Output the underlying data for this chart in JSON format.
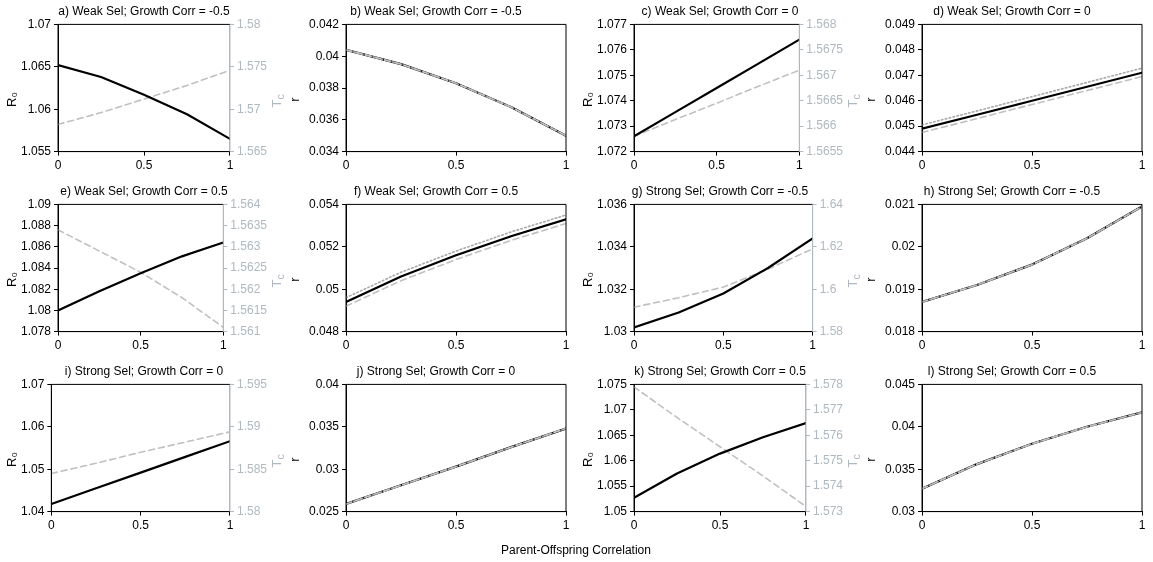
{
  "chart_data": [
    {
      "type": "line",
      "title": "a) Weak Sel; Growth Corr = -0.5",
      "ylabel": "R₀",
      "y2label": "T$_{c}$",
      "x": [
        0,
        0.25,
        0.5,
        0.75,
        1
      ],
      "xlim": [
        0,
        1
      ],
      "xticks": [
        0,
        0.5,
        1
      ],
      "ylim": [
        1.055,
        1.07
      ],
      "yticks": [
        1.055,
        1.06,
        1.065,
        1.07
      ],
      "y2lim": [
        1.565,
        1.58
      ],
      "y2ticks": [
        1.565,
        1.57,
        1.575,
        1.58
      ],
      "series": [
        {
          "color": "#000000",
          "line_style": "solid",
          "values": [
            1.0652,
            1.0638,
            1.0617,
            1.0594,
            1.0565
          ]
        },
        {
          "color": "#c0c0c0",
          "line_style": "dashed",
          "axis": "y2",
          "values": [
            1.5682,
            1.5696,
            1.5712,
            1.5728,
            1.5746
          ]
        }
      ]
    },
    {
      "type": "line",
      "title": "b) Weak Sel; Growth Corr = -0.5",
      "ylabel": "r",
      "x": [
        0,
        0.25,
        0.5,
        0.75,
        1
      ],
      "xlim": [
        0,
        1
      ],
      "xticks": [
        0,
        0.5,
        1
      ],
      "ylim": [
        0.034,
        0.042
      ],
      "yticks": [
        0.034,
        0.036,
        0.038,
        0.04,
        0.042
      ],
      "series": [
        {
          "color": "#c0c0c0",
          "line_style": "dashed",
          "values": [
            0.0404,
            0.0395,
            0.0383,
            0.0368,
            0.035
          ]
        },
        {
          "color": "#a8a8a8",
          "line_style": "dotted",
          "values": [
            0.0404,
            0.0395,
            0.0383,
            0.0368,
            0.035
          ]
        },
        {
          "color": "#000000",
          "line_style": "solid",
          "values": [
            0.0404,
            0.0395,
            0.0383,
            0.0368,
            0.035
          ]
        }
      ]
    },
    {
      "type": "line",
      "title": "c) Weak Sel; Growth Corr = 0",
      "ylabel": "R₀",
      "y2label": "T$_{c}$",
      "x": [
        0,
        0.25,
        0.5,
        0.75,
        1
      ],
      "xlim": [
        0,
        1
      ],
      "xticks": [
        0,
        0.5,
        1
      ],
      "ylim": [
        1.072,
        1.077
      ],
      "yticks": [
        1.072,
        1.073,
        1.074,
        1.075,
        1.076,
        1.077
      ],
      "y2lim": [
        1.5655,
        1.568
      ],
      "y2ticks": [
        1.5655,
        1.566,
        1.5665,
        1.567,
        1.5675,
        1.568
      ],
      "series": [
        {
          "color": "#000000",
          "line_style": "solid",
          "values": [
            1.0726,
            1.07355,
            1.0745,
            1.07545,
            1.0764
          ]
        },
        {
          "color": "#c0c0c0",
          "line_style": "dashed",
          "axis": "y2",
          "values": [
            1.5658,
            1.56613,
            1.56645,
            1.56678,
            1.5671
          ]
        }
      ]
    },
    {
      "type": "line",
      "title": "d) Weak Sel; Growth Corr = 0",
      "ylabel": "r",
      "x": [
        0,
        0.25,
        0.5,
        0.75,
        1
      ],
      "xlim": [
        0,
        1
      ],
      "xticks": [
        0,
        0.5,
        1
      ],
      "ylim": [
        0.044,
        0.049
      ],
      "yticks": [
        0.044,
        0.045,
        0.046,
        0.047,
        0.048,
        0.049
      ],
      "series": [
        {
          "color": "#c0c0c0",
          "line_style": "dashed",
          "values": [
            0.04475,
            0.0453,
            0.04585,
            0.0464,
            0.04695
          ]
        },
        {
          "color": "#a8a8a8",
          "line_style": "dotted",
          "values": [
            0.04505,
            0.0456,
            0.04616,
            0.04672,
            0.04728
          ]
        },
        {
          "color": "#000000",
          "line_style": "solid",
          "values": [
            0.0449,
            0.04545,
            0.046,
            0.04655,
            0.0471
          ]
        }
      ]
    },
    {
      "type": "line",
      "title": "e) Weak Sel; Growth Corr = 0.5",
      "ylabel": "R₀",
      "y2label": "T$_{c}$",
      "x": [
        0,
        0.25,
        0.5,
        0.75,
        1
      ],
      "xlim": [
        0,
        1
      ],
      "xticks": [
        0,
        0.5,
        1
      ],
      "ylim": [
        1.078,
        1.09
      ],
      "yticks": [
        1.078,
        1.08,
        1.082,
        1.084,
        1.086,
        1.088,
        1.09
      ],
      "y2lim": [
        1.561,
        1.564
      ],
      "y2ticks": [
        1.561,
        1.5615,
        1.562,
        1.5625,
        1.563,
        1.5635,
        1.564
      ],
      "series": [
        {
          "color": "#000000",
          "line_style": "solid",
          "values": [
            1.08,
            1.0818,
            1.0835,
            1.0851,
            1.0864
          ]
        },
        {
          "color": "#c0c0c0",
          "line_style": "dashed",
          "axis": "y2",
          "values": [
            1.5634,
            1.5629,
            1.5624,
            1.5618,
            1.5611
          ]
        }
      ]
    },
    {
      "type": "line",
      "title": "f) Weak Sel; Growth Corr = 0.5",
      "ylabel": "r",
      "x": [
        0,
        0.25,
        0.5,
        0.75,
        1
      ],
      "xlim": [
        0,
        1
      ],
      "xticks": [
        0,
        0.5,
        1
      ],
      "ylim": [
        0.048,
        0.054
      ],
      "yticks": [
        0.048,
        0.05,
        0.052,
        0.054
      ],
      "series": [
        {
          "color": "#c0c0c0",
          "line_style": "dashed",
          "values": [
            0.0492,
            0.0504,
            0.0514,
            0.0523,
            0.0531
          ]
        },
        {
          "color": "#a8a8a8",
          "line_style": "dotted",
          "values": [
            0.0496,
            0.0508,
            0.0518,
            0.0527,
            0.0535
          ]
        },
        {
          "color": "#000000",
          "line_style": "solid",
          "values": [
            0.0494,
            0.0506,
            0.0516,
            0.0525,
            0.0533
          ]
        }
      ]
    },
    {
      "type": "line",
      "title": "g) Strong Sel; Growth Corr = -0.5",
      "ylabel": "R₀",
      "y2label": "T$_{c}$",
      "x": [
        0,
        0.25,
        0.5,
        0.75,
        1
      ],
      "xlim": [
        0,
        1
      ],
      "xticks": [
        0,
        0.5,
        1
      ],
      "ylim": [
        1.03,
        1.036
      ],
      "yticks": [
        1.03,
        1.032,
        1.034,
        1.036
      ],
      "y2lim": [
        1.58,
        1.64
      ],
      "y2ticks": [
        1.58,
        1.6,
        1.62,
        1.64
      ],
      "series": [
        {
          "color": "#000000",
          "line_style": "solid",
          "values": [
            1.0302,
            1.0309,
            1.0318,
            1.033,
            1.0344
          ]
        },
        {
          "color": "#c0c0c0",
          "line_style": "dashed",
          "axis": "y2",
          "values": [
            1.5915,
            1.596,
            1.601,
            1.6095,
            1.619
          ]
        }
      ]
    },
    {
      "type": "line",
      "title": "h) Strong Sel; Growth Corr = -0.5",
      "ylabel": "r",
      "x": [
        0,
        0.25,
        0.5,
        0.75,
        1
      ],
      "xlim": [
        0,
        1
      ],
      "xticks": [
        0,
        0.5,
        1
      ],
      "ylim": [
        0.018,
        0.021
      ],
      "yticks": [
        0.018,
        0.019,
        0.02,
        0.021
      ],
      "series": [
        {
          "color": "#c0c0c0",
          "line_style": "dashed",
          "values": [
            0.0187,
            0.0191,
            0.01958,
            0.0202,
            0.02095
          ]
        },
        {
          "color": "#a8a8a8",
          "line_style": "dotted",
          "values": [
            0.0187,
            0.0191,
            0.01958,
            0.0202,
            0.02095
          ]
        },
        {
          "color": "#000000",
          "line_style": "solid",
          "values": [
            0.0187,
            0.0191,
            0.01958,
            0.0202,
            0.02095
          ]
        }
      ]
    },
    {
      "type": "line",
      "title": "i) Strong Sel; Growth Corr = 0",
      "ylabel": "R₀",
      "y2label": "T$_{c}$",
      "x": [
        0,
        0.25,
        0.5,
        0.75,
        1
      ],
      "xlim": [
        0,
        1
      ],
      "xticks": [
        0,
        0.5,
        1
      ],
      "ylim": [
        1.04,
        1.07
      ],
      "yticks": [
        1.04,
        1.05,
        1.06,
        1.07
      ],
      "y2lim": [
        1.58,
        1.595
      ],
      "y2ticks": [
        1.58,
        1.585,
        1.59,
        1.595
      ],
      "series": [
        {
          "color": "#000000",
          "line_style": "solid",
          "values": [
            1.0418,
            1.0455,
            1.0492,
            1.0529,
            1.0566
          ]
        },
        {
          "color": "#c0c0c0",
          "line_style": "dashed",
          "axis": "y2",
          "values": [
            1.5845,
            1.5857,
            1.587,
            1.5882,
            1.5894
          ]
        }
      ]
    },
    {
      "type": "line",
      "title": "j) Strong Sel; Growth Corr = 0",
      "ylabel": "r",
      "x": [
        0,
        0.25,
        0.5,
        0.75,
        1
      ],
      "xlim": [
        0,
        1
      ],
      "xticks": [
        0,
        0.5,
        1
      ],
      "ylim": [
        0.025,
        0.04
      ],
      "yticks": [
        0.025,
        0.03,
        0.035,
        0.04
      ],
      "series": [
        {
          "color": "#c0c0c0",
          "line_style": "dashed",
          "values": [
            0.0259,
            0.0281,
            0.0303,
            0.0326,
            0.0348
          ]
        },
        {
          "color": "#a8a8a8",
          "line_style": "dotted",
          "values": [
            0.0259,
            0.0281,
            0.0303,
            0.0326,
            0.0348
          ]
        },
        {
          "color": "#000000",
          "line_style": "solid",
          "values": [
            0.0259,
            0.0281,
            0.0303,
            0.0326,
            0.0348
          ]
        }
      ]
    },
    {
      "type": "line",
      "title": "k) Strong Sel; Growth Corr = 0.5",
      "ylabel": "R₀",
      "y2label": "T$_{c}$",
      "x": [
        0,
        0.25,
        0.5,
        0.75,
        1
      ],
      "xlim": [
        0,
        1
      ],
      "xticks": [
        0,
        0.5,
        1
      ],
      "ylim": [
        1.05,
        1.075
      ],
      "yticks": [
        1.05,
        1.055,
        1.06,
        1.065,
        1.07,
        1.075
      ],
      "y2lim": [
        1.573,
        1.578
      ],
      "y2ticks": [
        1.573,
        1.574,
        1.575,
        1.576,
        1.577,
        1.578
      ],
      "series": [
        {
          "color": "#000000",
          "line_style": "solid",
          "values": [
            1.0527,
            1.0575,
            1.0614,
            1.0646,
            1.0674
          ]
        },
        {
          "color": "#c0c0c0",
          "line_style": "dashed",
          "axis": "y2",
          "values": [
            1.5779,
            1.5767,
            1.57555,
            1.5744,
            1.5732
          ]
        }
      ]
    },
    {
      "type": "line",
      "title": "l) Strong Sel; Growth Corr = 0.5",
      "ylabel": "r",
      "x": [
        0,
        0.25,
        0.5,
        0.75,
        1
      ],
      "xlim": [
        0,
        1
      ],
      "xticks": [
        0,
        0.5,
        1
      ],
      "ylim": [
        0.03,
        0.045
      ],
      "yticks": [
        0.03,
        0.035,
        0.04,
        0.045
      ],
      "series": [
        {
          "color": "#c0c0c0",
          "line_style": "dashed",
          "values": [
            0.0327,
            0.0356,
            0.038,
            0.04,
            0.0417
          ]
        },
        {
          "color": "#a8a8a8",
          "line_style": "dotted",
          "values": [
            0.0327,
            0.0356,
            0.038,
            0.04,
            0.0417
          ]
        },
        {
          "color": "#000000",
          "line_style": "solid",
          "values": [
            0.0327,
            0.0356,
            0.038,
            0.04,
            0.0417
          ]
        }
      ]
    },
    {
      "type": "other",
      "annotations": [
        "Parent-Offspring Correlation"
      ]
    }
  ]
}
